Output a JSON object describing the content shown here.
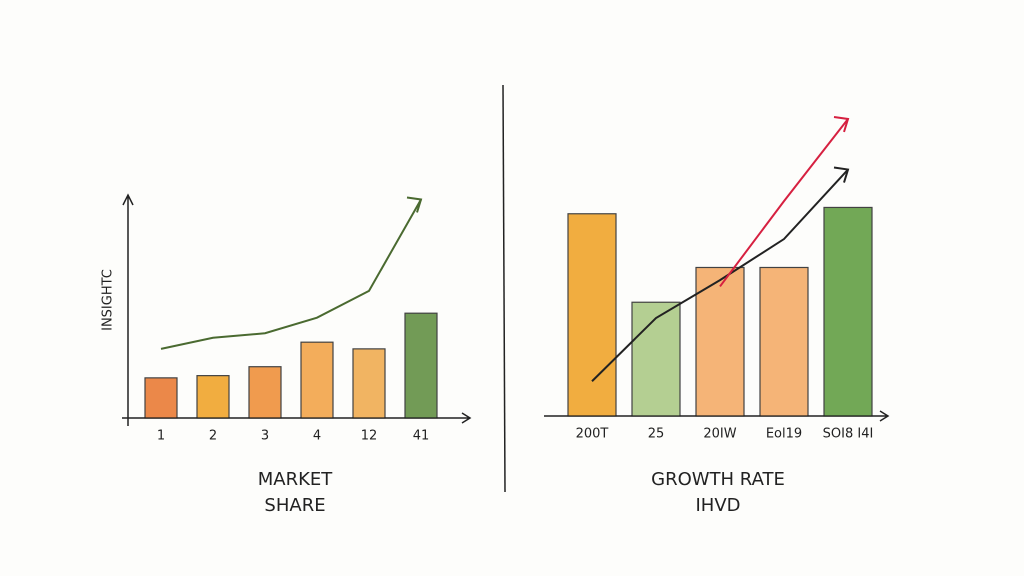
{
  "chart_data": [
    {
      "type": "bar",
      "title_lines": [
        "MARKET",
        "SHARE"
      ],
      "ylabel": "INSIGHTC",
      "categories": [
        "1",
        "2",
        "3",
        "4",
        "12",
        "41"
      ],
      "values": [
        1.8,
        1.9,
        2.3,
        3.4,
        3.1,
        4.7
      ],
      "colors": [
        "#e8742a",
        "#f0a020",
        "#ee8a30",
        "#f2a040",
        "#f0a848",
        "#5a8a3a"
      ],
      "lines": [
        {
          "color": "#4a6a30",
          "values": [
            3.1,
            3.6,
            3.8,
            4.5,
            5.7,
            9.8
          ]
        }
      ],
      "ylim": [
        0,
        10
      ]
    },
    {
      "type": "bar",
      "title_lines": [
        "GROWTH RATE",
        "IHVD"
      ],
      "categories": [
        "200T",
        "25",
        "20IW",
        "Eol19",
        "SOI8 I4I"
      ],
      "values": [
        6.4,
        3.6,
        4.7,
        4.7,
        6.6
      ],
      "colors": [
        "#f0a020",
        "#a8c880",
        "#f4a860",
        "#f4a860",
        "#5a9a3a"
      ],
      "lines": [
        {
          "color": "#222222",
          "values": [
            1.1,
            3.1,
            4.3,
            5.6,
            7.8
          ]
        },
        {
          "color": "#d62040",
          "values": [
            null,
            null,
            4.1,
            6.8,
            9.4
          ]
        }
      ],
      "ylim": [
        0,
        10
      ]
    }
  ]
}
